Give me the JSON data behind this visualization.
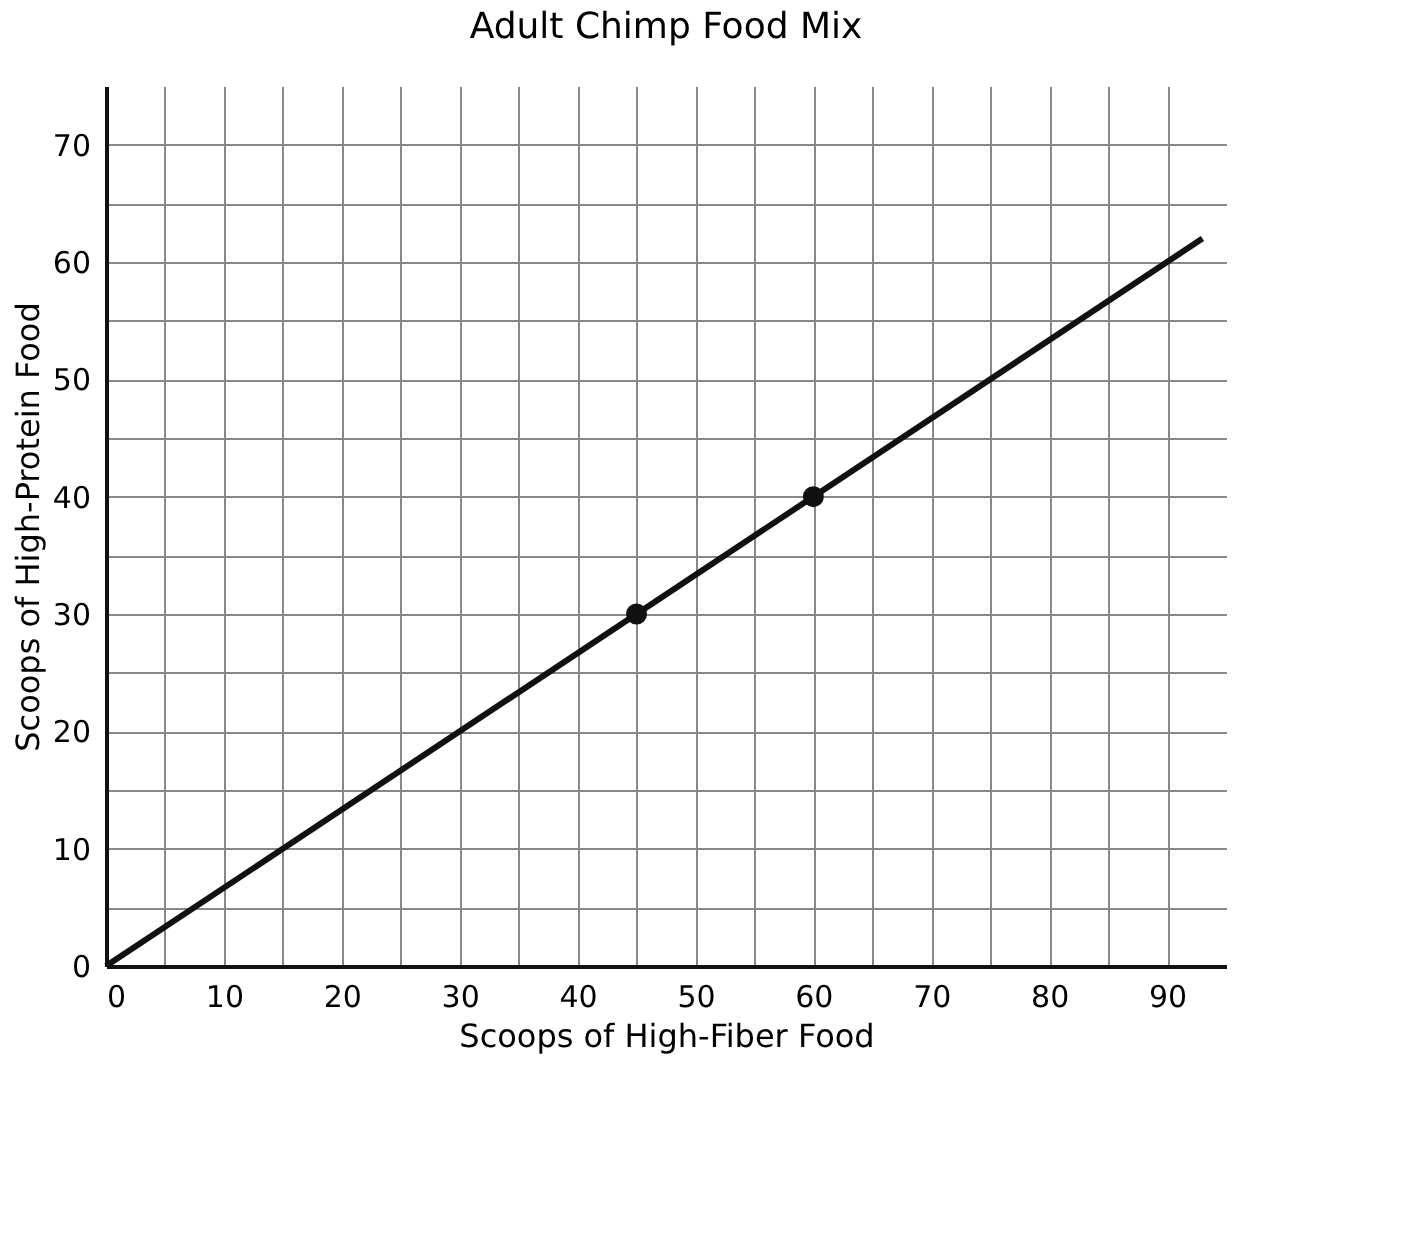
{
  "chart_data": {
    "type": "line",
    "title": "Adult Chimp Food Mix",
    "xlabel": "Scoops of High-Fiber Food",
    "ylabel": "Scoops of High-Protein Food",
    "xlim": [
      0,
      95
    ],
    "ylim": [
      0,
      75
    ],
    "xticks": [
      0,
      {
        "value": 5,
        "label": null
      },
      10,
      {
        "value": 15,
        "label": null
      },
      20,
      {
        "value": 25,
        "label": null
      },
      30,
      {
        "value": 35,
        "label": null
      },
      40,
      {
        "value": 45,
        "label": null
      },
      50,
      {
        "value": 55,
        "label": null
      },
      60,
      {
        "value": 65,
        "label": null
      },
      70,
      {
        "value": 75,
        "label": null
      },
      80,
      {
        "value": 85,
        "label": null
      },
      90
    ],
    "yticks": [
      0,
      {
        "value": 5,
        "label": null
      },
      10,
      {
        "value": 15,
        "label": null
      },
      20,
      {
        "value": 25,
        "label": null
      },
      30,
      {
        "value": 35,
        "label": null
      },
      40,
      {
        "value": 45,
        "label": null
      },
      50,
      {
        "value": 55,
        "label": null
      },
      60,
      {
        "value": 65,
        "label": null
      },
      70
    ],
    "grid": true,
    "series": [
      {
        "color": "#111111",
        "x": [
          0,
          93
        ],
        "values": [
          0,
          62
        ],
        "marker": "none",
        "line_style": "solid"
      },
      {
        "type": "scatter",
        "color": "#111111",
        "x": [
          45,
          60
        ],
        "values": [
          30,
          40
        ],
        "marker": "circle"
      }
    ]
  }
}
